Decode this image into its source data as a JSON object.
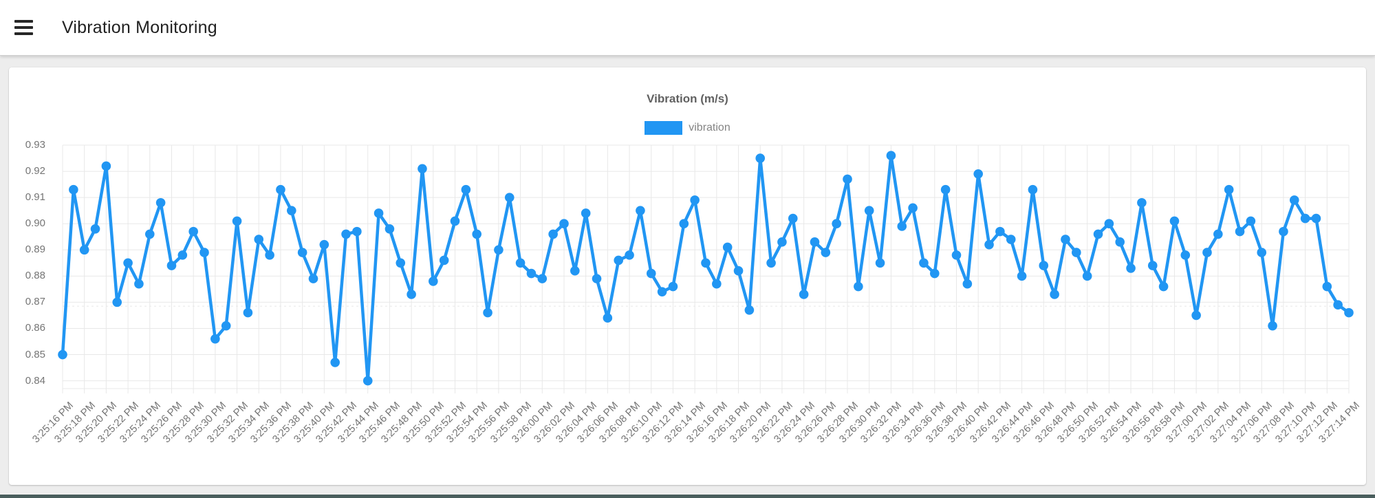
{
  "header": {
    "title": "Vibration Monitoring",
    "menu_icon": "hamburger-icon"
  },
  "colors": {
    "accent": "#2196f3",
    "appbar_bg": "#ffffff",
    "page_bg": "#ededed",
    "footer_strip": "#4a5e5d",
    "grid": "#e8e8e8",
    "axis_text": "#757575"
  },
  "chart_data": {
    "type": "line",
    "title": "Vibration (m/s)",
    "legend_position": "top",
    "grid": true,
    "ylabel": "",
    "xlabel": "",
    "ylim": [
      0.837,
      0.93
    ],
    "y_ticks": [
      "0.84",
      "0.85",
      "0.86",
      "0.87",
      "0.88",
      "0.89",
      "0.90",
      "0.91",
      "0.92",
      "0.93"
    ],
    "dashed_line_y": 0.8685,
    "x_interval_seconds": 1,
    "x_tick_labels": [
      "3:25:16 PM",
      "3:25:18 PM",
      "3:25:20 PM",
      "3:25:22 PM",
      "3:25:24 PM",
      "3:25:26 PM",
      "3:25:28 PM",
      "3:25:30 PM",
      "3:25:32 PM",
      "3:25:34 PM",
      "3:25:36 PM",
      "3:25:38 PM",
      "3:25:40 PM",
      "3:25:42 PM",
      "3:25:44 PM",
      "3:25:46 PM",
      "3:25:48 PM",
      "3:25:50 PM",
      "3:25:52 PM",
      "3:25:54 PM",
      "3:25:56 PM",
      "3:25:58 PM",
      "3:26:00 PM",
      "3:26:02 PM",
      "3:26:04 PM",
      "3:26:06 PM",
      "3:26:08 PM",
      "3:26:10 PM",
      "3:26:12 PM",
      "3:26:14 PM",
      "3:26:16 PM",
      "3:26:18 PM",
      "3:26:20 PM",
      "3:26:22 PM",
      "3:26:24 PM",
      "3:26:26 PM",
      "3:26:28 PM",
      "3:26:30 PM",
      "3:26:32 PM",
      "3:26:34 PM",
      "3:26:36 PM",
      "3:26:38 PM",
      "3:26:40 PM",
      "3:26:42 PM",
      "3:26:44 PM",
      "3:26:46 PM",
      "3:26:48 PM",
      "3:26:50 PM",
      "3:26:52 PM",
      "3:26:54 PM",
      "3:26:56 PM",
      "3:26:58 PM",
      "3:27:00 PM",
      "3:27:02 PM",
      "3:27:04 PM",
      "3:27:06 PM",
      "3:27:08 PM",
      "3:27:10 PM",
      "3:27:12 PM",
      "3:27:14 PM"
    ],
    "series": [
      {
        "name": "vibration",
        "color": "#2196f3",
        "values": [
          0.85,
          0.913,
          0.89,
          0.898,
          0.922,
          0.87,
          0.885,
          0.877,
          0.896,
          0.908,
          0.884,
          0.888,
          0.897,
          0.889,
          0.856,
          0.861,
          0.901,
          0.866,
          0.894,
          0.888,
          0.913,
          0.905,
          0.889,
          0.879,
          0.892,
          0.847,
          0.896,
          0.897,
          0.84,
          0.904,
          0.898,
          0.885,
          0.873,
          0.921,
          0.878,
          0.886,
          0.901,
          0.913,
          0.896,
          0.866,
          0.89,
          0.91,
          0.885,
          0.881,
          0.879,
          0.896,
          0.9,
          0.882,
          0.904,
          0.879,
          0.864,
          0.886,
          0.888,
          0.905,
          0.881,
          0.874,
          0.876,
          0.9,
          0.909,
          0.885,
          0.877,
          0.891,
          0.882,
          0.867,
          0.925,
          0.885,
          0.893,
          0.902,
          0.873,
          0.893,
          0.889,
          0.9,
          0.917,
          0.876,
          0.905,
          0.885,
          0.926,
          0.899,
          0.906,
          0.885,
          0.881,
          0.913,
          0.888,
          0.877,
          0.919,
          0.892,
          0.897,
          0.894,
          0.88,
          0.913,
          0.884,
          0.873,
          0.894,
          0.889,
          0.88,
          0.896,
          0.9,
          0.893,
          0.883,
          0.908,
          0.884,
          0.876,
          0.901,
          0.888,
          0.865,
          0.889,
          0.896,
          0.913,
          0.897,
          0.901,
          0.889,
          0.861,
          0.897,
          0.909,
          0.902,
          0.902,
          0.876,
          0.869,
          0.866
        ]
      }
    ]
  }
}
